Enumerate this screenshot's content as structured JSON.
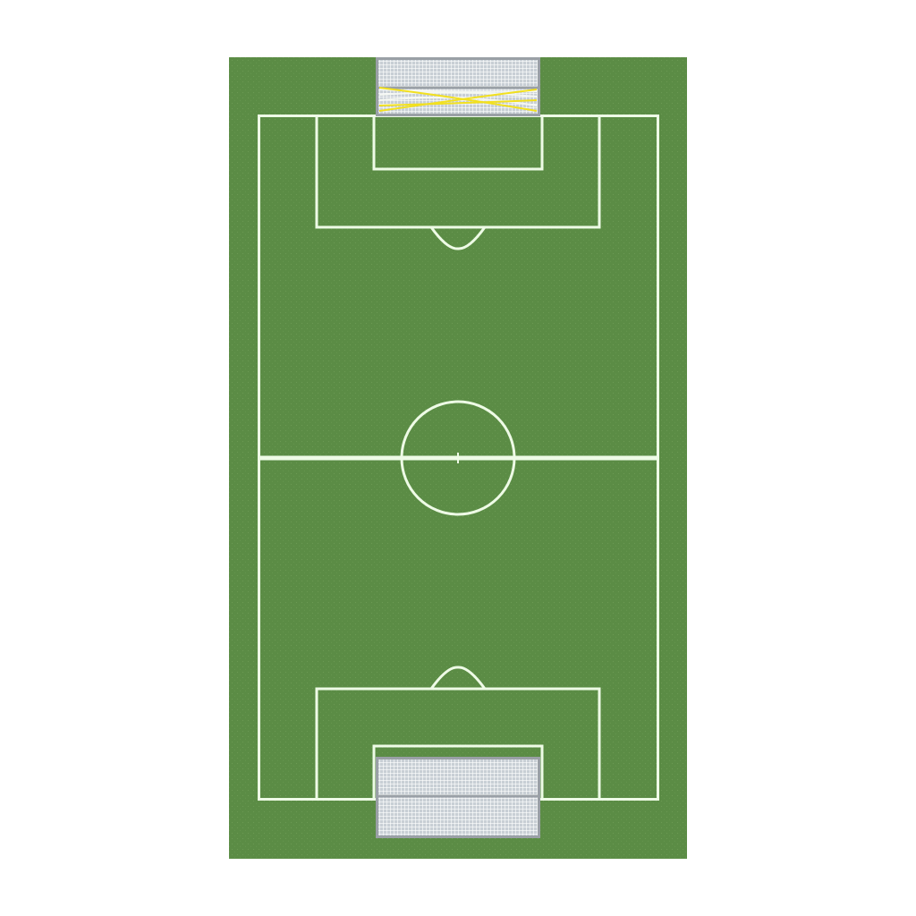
{
  "colors": {
    "background": "#ffffff",
    "grass": "#5b8c45",
    "grass_speckle": "#6a9a52",
    "lines": "#eefbe6",
    "goal_frame": "#9aa0a6",
    "goal_net": "#dde3e8",
    "trail_yellow": "#f2e01f",
    "trail_white": "#f4f7f2"
  },
  "icons": {
    "top_goal": "goal-net-icon",
    "bottom_goal": "goal-net-icon",
    "ball_trail": "shot-trail-icon"
  }
}
